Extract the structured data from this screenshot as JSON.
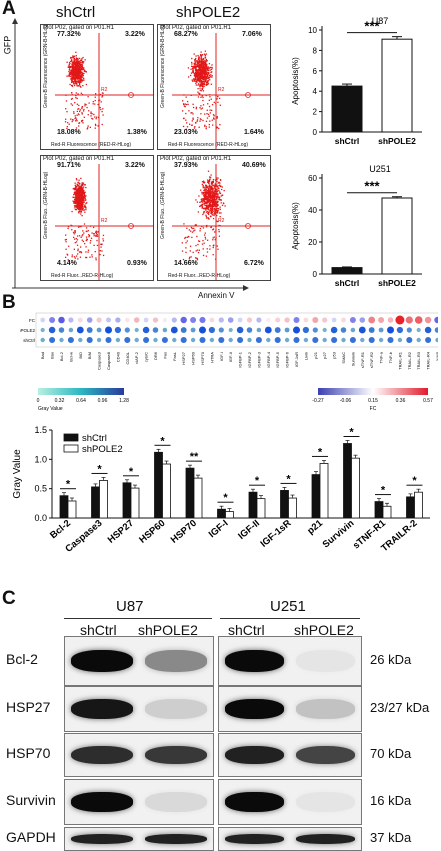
{
  "panel_a": {
    "letter": "A",
    "conditions": [
      "shCtrl",
      "shPOLE2"
    ],
    "axis_gfp": "GFP",
    "axis_annexin": "Annexin V",
    "plots": [
      {
        "header": "Plot P02, gated on P01.R1",
        "ylabel": "Green-B Fluorescence (GRN-B-HLog)",
        "xlabel": "Red-R Fluorescence (RED-R-HLog)",
        "ul": "77.32%",
        "ur": "3.22%",
        "ll": "18.08%",
        "lr": "1.38%"
      },
      {
        "header": "Plot P02, gated on P01.R1",
        "ylabel": "Green-B Fluorescence (GRN-B-HLog)",
        "xlabel": "Red-R Fluorescence (RED-R-HLog)",
        "ul": "68.27%",
        "ur": "7.06%",
        "ll": "23.03%",
        "lr": "1.64%"
      },
      {
        "header": "Plot P02, gated on P01.R1",
        "ylabel": "Green-B Fluo...(GRN-B-HLog)",
        "xlabel": "Red-R Fluor...RED-R-HLog)",
        "ul": "91.71%",
        "ur": "3.22%",
        "ll": "4.14%",
        "lr": "0.93%"
      },
      {
        "header": "Plot P02, gated on P01.R1",
        "ylabel": "Green-B Fluo...(GRN-B-HLog)",
        "xlabel": "Red-R Fluor...RED-R-HLog)",
        "ul": "37.93%",
        "ur": "40.69%",
        "ll": "14.66%",
        "lr": "6.72%"
      }
    ],
    "gate_label": "R2"
  },
  "chart_data": [
    {
      "type": "bar",
      "title": "U87",
      "ylabel": "Apoptosis(%)",
      "categories": [
        "shCtrl",
        "shPOLE2"
      ],
      "values": [
        4.5,
        9.1
      ],
      "errors": [
        0.2,
        0.25
      ],
      "ylim": [
        0,
        10
      ],
      "yticks": [
        0,
        2,
        4,
        6,
        8,
        10
      ],
      "significance": "***",
      "colors": [
        "#111111",
        "#ffffff"
      ]
    },
    {
      "type": "bar",
      "title": "U251",
      "ylabel": "Apoptosis(%)",
      "categories": [
        "shCtrl",
        "shPOLE2"
      ],
      "values": [
        4,
        47.5
      ],
      "errors": [
        0.4,
        0.8
      ],
      "ylim": [
        0,
        60
      ],
      "yticks": [
        0,
        20,
        40,
        60
      ],
      "significance": "***",
      "colors": [
        "#111111",
        "#ffffff"
      ]
    },
    {
      "type": "heatmap",
      "rows": [
        "FC",
        "shPOLE2",
        "shCtrl"
      ],
      "columns": [
        "Bad",
        "Bax",
        "Bcl-2",
        "Bcl-w",
        "BID",
        "BIM",
        "Caspase3",
        "Caspase8",
        "CD40",
        "CD40L",
        "cIAP-2",
        "cytoC",
        "DR6",
        "Fas",
        "FasL",
        "HSP27",
        "HSP60",
        "HSP70",
        "HTRA",
        "IGF-I",
        "IGF-II",
        "IGFBP-1",
        "IGFBP-2",
        "IGFBP-3",
        "IGFBP-4",
        "IGFBP-5",
        "IGFBP-6",
        "IGF-1sR",
        "Livin",
        "p21",
        "p27",
        "p53",
        "SMAC",
        "Survivin",
        "sTNF-R1",
        "sTNF-R2",
        "TNF-a",
        "TNF-b",
        "TRAIL-R1",
        "TRAIL-R2",
        "TRAIL-R3",
        "TRAIL-R4",
        "XIAP"
      ],
      "fc_values": [
        -0.05,
        -0.2,
        -0.27,
        -0.1,
        0.05,
        -0.15,
        0.1,
        -0.08,
        -0.12,
        0.02,
        0.15,
        -0.05,
        0.12,
        0.0,
        -0.1,
        -0.25,
        -0.2,
        -0.22,
        0.05,
        -0.1,
        -0.15,
        -0.05,
        0.1,
        -0.1,
        0.0,
        0.08,
        0.12,
        -0.2,
        0.05,
        0.2,
        0.1,
        -0.05,
        0.05,
        -0.2,
        -0.15,
        0.3,
        0.2,
        0.15,
        0.57,
        0.35,
        0.4,
        0.25,
        -0.25
      ],
      "legend_gray": {
        "label": "Gray Value",
        "ticks": [
          "0",
          "0.32",
          "0.64",
          "0.96",
          "1.28"
        ]
      },
      "legend_fc": {
        "label": "FC",
        "ticks": [
          "-0.27",
          "-0.06",
          "0.15",
          "0.36",
          "0.57"
        ]
      }
    },
    {
      "type": "bar",
      "ylabel": "Gray Value",
      "categories": [
        "Bcl-2",
        "Caspase3",
        "HSP27",
        "HSP60",
        "HSP70",
        "IGF-I",
        "IGF-II",
        "IGF-1sR",
        "p21",
        "Survivin",
        "sTNF-R1",
        "TRAILR-2"
      ],
      "series": [
        {
          "name": "shCtrl",
          "values": [
            0.38,
            0.53,
            0.6,
            1.12,
            0.85,
            0.15,
            0.44,
            0.47,
            0.74,
            1.27,
            0.28,
            0.36
          ]
        },
        {
          "name": "shPOLE2",
          "values": [
            0.29,
            0.64,
            0.51,
            0.92,
            0.68,
            0.11,
            0.33,
            0.34,
            0.93,
            1.02,
            0.2,
            0.44
          ]
        }
      ],
      "significance": [
        "*",
        "*",
        "*",
        "*",
        "**",
        "*",
        "*",
        "*",
        "*",
        "*",
        "*",
        "*"
      ],
      "ylim": [
        0,
        1.5
      ],
      "yticks": [
        "0.0",
        "0.5",
        "1.0",
        "1.5"
      ],
      "legend": "top-left"
    }
  ],
  "panel_b": {
    "letter": "B"
  },
  "panel_c": {
    "letter": "C",
    "cell_lines": [
      "U87",
      "U251"
    ],
    "lanes": [
      "shCtrl",
      "shPOLE2",
      "shCtrl",
      "shPOLE2"
    ],
    "proteins": [
      {
        "name": "Bcl-2",
        "kda": "26 kDa",
        "level_u87": [
          1.0,
          0.45
        ],
        "level_u251": [
          1.0,
          0.05
        ]
      },
      {
        "name": "HSP27",
        "kda": "23/27 kDa",
        "level_u87": [
          0.95,
          0.15
        ],
        "level_u251": [
          1.0,
          0.2
        ]
      },
      {
        "name": "HSP70",
        "kda": "70 kDa",
        "level_u87": [
          0.85,
          0.8
        ],
        "level_u251": [
          0.9,
          0.75
        ]
      },
      {
        "name": "Survivin",
        "kda": "16 kDa",
        "level_u87": [
          1.0,
          0.1
        ],
        "level_u251": [
          1.0,
          0.05
        ]
      },
      {
        "name": "GAPDH",
        "kda": "37 kDa",
        "level_u87": [
          0.9,
          0.9
        ],
        "level_u251": [
          0.9,
          0.9
        ]
      }
    ]
  }
}
